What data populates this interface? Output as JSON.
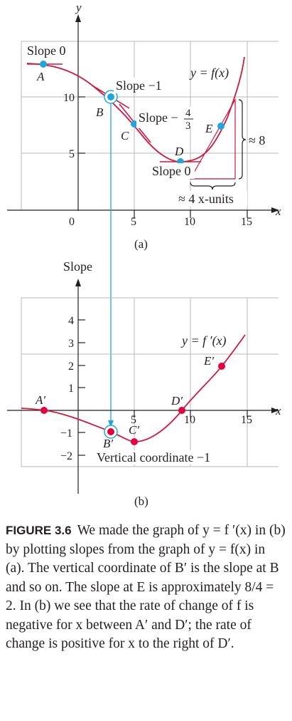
{
  "colors": {
    "grid": "#b9b9b9",
    "axis": "#231f20",
    "curve": "#d3173d",
    "point_top": "#1fa6e0",
    "point_bottom": "#e3003c",
    "guide": "#1fa6e0"
  },
  "top": {
    "y_axis_label": "y",
    "x_axis_label": "x",
    "x_ticks": [
      "0",
      "5",
      "10",
      "15"
    ],
    "y_ticks": [
      "5",
      "10"
    ],
    "curve_label": "y = f(x)",
    "points": [
      {
        "label": "A"
      },
      {
        "label": "B"
      },
      {
        "label": "C"
      },
      {
        "label": "D"
      },
      {
        "label": "E"
      }
    ],
    "annotations": {
      "slope_a": "Slope 0",
      "slope_b": "Slope −1",
      "slope_c": "Slope −",
      "frac_num": "4",
      "frac_den": "3",
      "slope_d": "Slope 0",
      "rise": "≈ 8",
      "run": "≈ 4 x-units"
    },
    "panel_label": "(a)"
  },
  "bottom": {
    "y_axis_label": "Slope",
    "x_axis_label": "x",
    "x_ticks": [
      "5",
      "10",
      "15"
    ],
    "y_ticks": [
      "4",
      "3",
      "2",
      "1",
      "−1",
      "−2"
    ],
    "curve_label": "y = f ′(x)",
    "points": [
      {
        "label": "A′"
      },
      {
        "label": "B′"
      },
      {
        "label": "C′"
      },
      {
        "label": "D′"
      },
      {
        "label": "E′"
      }
    ],
    "annotation": "Vertical coordinate −1",
    "panel_label": "(b)"
  },
  "chart_data": [
    {
      "type": "line",
      "x": [
        -3,
        -2,
        0,
        3,
        5,
        7,
        9,
        11,
        13,
        14
      ],
      "y": [
        12,
        12,
        11.5,
        10,
        7.4,
        4.6,
        3.7,
        5.2,
        7.7,
        11.8
      ],
      "points": {
        "A": [
          -2,
          12
        ],
        "B": [
          3,
          10
        ],
        "C": [
          5,
          7.4
        ],
        "D": [
          9,
          3.7
        ],
        "E": [
          13,
          7.7
        ]
      },
      "xlim": [
        -4.5,
        16
      ],
      "ylim": [
        -1.5,
        13.5
      ],
      "title": "",
      "xlabel": "x",
      "ylabel": "y"
    },
    {
      "type": "line",
      "x": [
        -3,
        -2,
        0,
        3,
        5,
        7,
        9,
        11,
        13,
        14
      ],
      "y": [
        0.1,
        0,
        -0.4,
        -1,
        -1.4,
        -0.9,
        0,
        1.2,
        2,
        2.8
      ],
      "points": {
        "A′": [
          -2,
          0
        ],
        "B′": [
          3,
          -1
        ],
        "C′": [
          5,
          -1.4
        ],
        "D′": [
          9,
          0
        ],
        "E′": [
          13,
          2
        ]
      },
      "xlim": [
        -4.5,
        16
      ],
      "ylim": [
        -2.7,
        5
      ],
      "title": "",
      "xlabel": "x",
      "ylabel": "Slope"
    }
  ],
  "caption": {
    "label": "FIGURE 3.6",
    "text": "We made the graph of y = f ′(x) in (b) by plotting slopes from the graph of y = f(x) in (a). The vertical coordinate of B′ is the slope at B and so on. The slope at E is approximately 8/4 = 2. In (b) we see that the rate of change of f is negative for x between A′ and D′; the rate of change is positive for x to the right of D′."
  }
}
